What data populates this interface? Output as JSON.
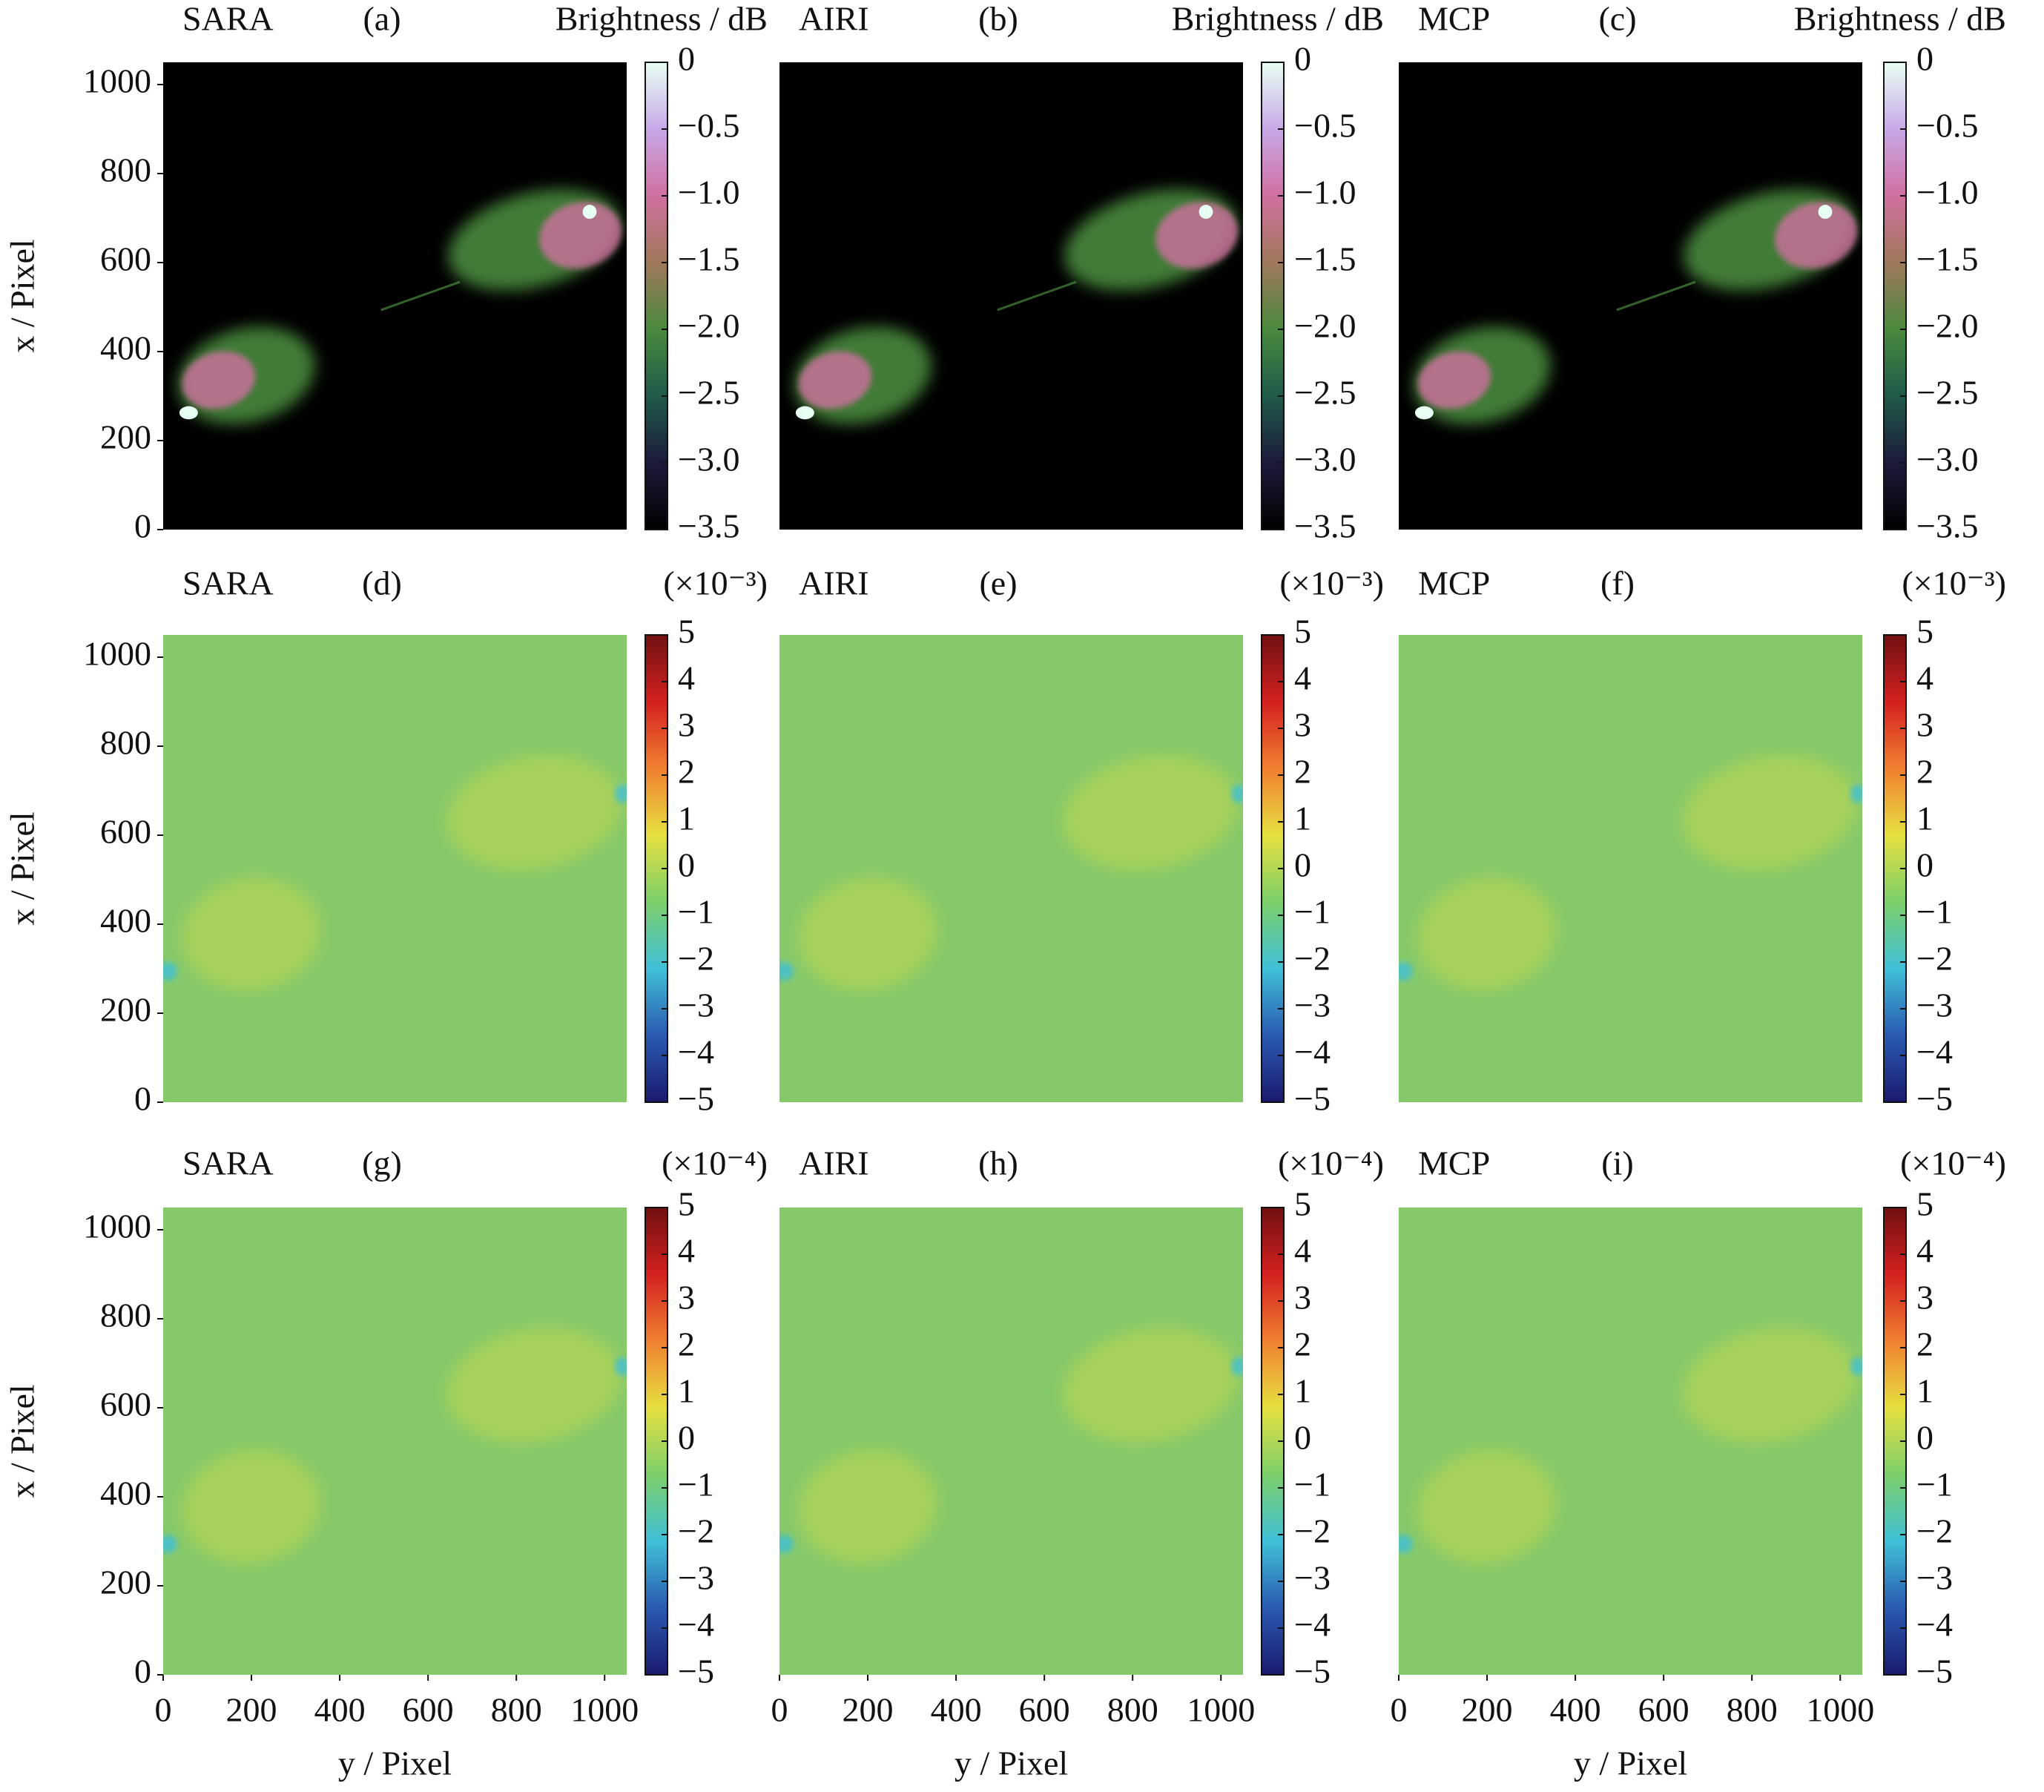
{
  "chart_data": [
    {
      "type": "image",
      "method": "SARA",
      "label": "(a)",
      "colorbar_title": "Brightness / dB",
      "background": "#000000",
      "colorbar_colors": [
        "#000000",
        "#1c1a3a",
        "#1f5a4a",
        "#4a8a3e",
        "#a0785a",
        "#d070a0",
        "#c8a8e8",
        "#e8fff4"
      ],
      "clim": [
        -3.5,
        0
      ],
      "cticks": [
        0,
        {
          "value": -0.5,
          "label": "−0.5"
        },
        {
          "value": -1.0,
          "label": "−1.0"
        },
        {
          "value": -1.5,
          "label": "−1.5"
        },
        {
          "value": -2.0,
          "label": "−2.0"
        },
        {
          "value": -2.5,
          "label": "−2.5"
        },
        {
          "value": -3.0,
          "label": "−3.0"
        },
        {
          "value": -3.5,
          "label": "−3.5"
        }
      ],
      "xlim": [
        0,
        1050
      ],
      "ylim": [
        0,
        1050
      ],
      "yticks": [
        0,
        200,
        400,
        600,
        800,
        1000
      ],
      "ylabel": "x / Pixel"
    },
    {
      "type": "image",
      "method": "AIRI",
      "label": "(b)",
      "colorbar_title": "Brightness / dB",
      "background": "#000000",
      "colorbar_colors": [
        "#000000",
        "#1c1a3a",
        "#1f5a4a",
        "#4a8a3e",
        "#a0785a",
        "#d070a0",
        "#c8a8e8",
        "#e8fff4"
      ],
      "clim": [
        -3.5,
        0
      ],
      "cticks": [
        0,
        {
          "value": -0.5,
          "label": "−0.5"
        },
        {
          "value": -1.0,
          "label": "−1.0"
        },
        {
          "value": -1.5,
          "label": "−1.5"
        },
        {
          "value": -2.0,
          "label": "−2.0"
        },
        {
          "value": -2.5,
          "label": "−2.5"
        },
        {
          "value": -3.0,
          "label": "−3.0"
        },
        {
          "value": -3.5,
          "label": "−3.5"
        }
      ],
      "xlim": [
        0,
        1050
      ],
      "ylim": [
        0,
        1050
      ]
    },
    {
      "type": "image",
      "method": "MCP",
      "label": "(c)",
      "colorbar_title": "Brightness / dB",
      "background": "#000000",
      "colorbar_colors": [
        "#000000",
        "#1c1a3a",
        "#1f5a4a",
        "#4a8a3e",
        "#a0785a",
        "#d070a0",
        "#c8a8e8",
        "#e8fff4"
      ],
      "clim": [
        -3.5,
        0
      ],
      "cticks": [
        0,
        {
          "value": -0.5,
          "label": "−0.5"
        },
        {
          "value": -1.0,
          "label": "−1.0"
        },
        {
          "value": -1.5,
          "label": "−1.5"
        },
        {
          "value": -2.0,
          "label": "−2.0"
        },
        {
          "value": -2.5,
          "label": "−2.5"
        },
        {
          "value": -3.0,
          "label": "−3.0"
        },
        {
          "value": -3.5,
          "label": "−3.5"
        }
      ],
      "xlim": [
        0,
        1050
      ],
      "ylim": [
        0,
        1050
      ]
    },
    {
      "type": "image",
      "method": "SARA",
      "label": "(d)",
      "colorbar_title": "(×10⁻³)",
      "background": "#86c96a",
      "colorbar_colors": [
        "#1a1a6e",
        "#2a5ab0",
        "#40c0d8",
        "#7ccf6a",
        "#e6e040",
        "#f08030",
        "#d42020",
        "#701010"
      ],
      "clim": [
        -5,
        5
      ],
      "cticks": [
        5,
        4,
        3,
        2,
        1,
        0,
        {
          "value": -1,
          "label": "−1"
        },
        {
          "value": -2,
          "label": "−2"
        },
        {
          "value": -3,
          "label": "−3"
        },
        {
          "value": -4,
          "label": "−4"
        },
        {
          "value": -5,
          "label": "−5"
        }
      ],
      "xlim": [
        0,
        1050
      ],
      "ylim": [
        0,
        1050
      ],
      "yticks": [
        0,
        200,
        400,
        600,
        800,
        1000
      ],
      "ylabel": "x / Pixel"
    },
    {
      "type": "image",
      "method": "AIRI",
      "label": "(e)",
      "colorbar_title": "(×10⁻³)",
      "background": "#86c96a",
      "colorbar_colors": [
        "#1a1a6e",
        "#2a5ab0",
        "#40c0d8",
        "#7ccf6a",
        "#e6e040",
        "#f08030",
        "#d42020",
        "#701010"
      ],
      "clim": [
        -5,
        5
      ],
      "cticks": [
        5,
        4,
        3,
        2,
        1,
        0,
        {
          "value": -1,
          "label": "−1"
        },
        {
          "value": -2,
          "label": "−2"
        },
        {
          "value": -3,
          "label": "−3"
        },
        {
          "value": -4,
          "label": "−4"
        },
        {
          "value": -5,
          "label": "−5"
        }
      ],
      "xlim": [
        0,
        1050
      ],
      "ylim": [
        0,
        1050
      ]
    },
    {
      "type": "image",
      "method": "MCP",
      "label": "(f)",
      "colorbar_title": "(×10⁻³)",
      "background": "#86c96a",
      "colorbar_colors": [
        "#1a1a6e",
        "#2a5ab0",
        "#40c0d8",
        "#7ccf6a",
        "#e6e040",
        "#f08030",
        "#d42020",
        "#701010"
      ],
      "clim": [
        -5,
        5
      ],
      "cticks": [
        5,
        4,
        3,
        2,
        1,
        0,
        {
          "value": -1,
          "label": "−1"
        },
        {
          "value": -2,
          "label": "−2"
        },
        {
          "value": -3,
          "label": "−3"
        },
        {
          "value": -4,
          "label": "−4"
        },
        {
          "value": -5,
          "label": "−5"
        }
      ],
      "xlim": [
        0,
        1050
      ],
      "ylim": [
        0,
        1050
      ]
    },
    {
      "type": "image",
      "method": "SARA",
      "label": "(g)",
      "colorbar_title": "(×10⁻⁴)",
      "background": "#86c96a",
      "colorbar_colors": [
        "#1a1a6e",
        "#2a5ab0",
        "#40c0d8",
        "#7ccf6a",
        "#e6e040",
        "#f08030",
        "#d42020",
        "#701010"
      ],
      "clim": [
        -5,
        5
      ],
      "cticks": [
        5,
        4,
        3,
        2,
        1,
        0,
        {
          "value": -1,
          "label": "−1"
        },
        {
          "value": -2,
          "label": "−2"
        },
        {
          "value": -3,
          "label": "−3"
        },
        {
          "value": -4,
          "label": "−4"
        },
        {
          "value": -5,
          "label": "−5"
        }
      ],
      "xlim": [
        0,
        1050
      ],
      "ylim": [
        0,
        1050
      ],
      "yticks": [
        0,
        200,
        400,
        600,
        800,
        1000
      ],
      "ylabel": "x / Pixel",
      "xticks": [
        0,
        200,
        400,
        600,
        800,
        1000
      ],
      "xlabel": "y / Pixel"
    },
    {
      "type": "image",
      "method": "AIRI",
      "label": "(h)",
      "colorbar_title": "(×10⁻⁴)",
      "background": "#86c96a",
      "colorbar_colors": [
        "#1a1a6e",
        "#2a5ab0",
        "#40c0d8",
        "#7ccf6a",
        "#e6e040",
        "#f08030",
        "#d42020",
        "#701010"
      ],
      "clim": [
        -5,
        5
      ],
      "cticks": [
        5,
        4,
        3,
        2,
        1,
        0,
        {
          "value": -1,
          "label": "−1"
        },
        {
          "value": -2,
          "label": "−2"
        },
        {
          "value": -3,
          "label": "−3"
        },
        {
          "value": -4,
          "label": "−4"
        },
        {
          "value": -5,
          "label": "−5"
        }
      ],
      "xlim": [
        0,
        1050
      ],
      "ylim": [
        0,
        1050
      ],
      "xticks": [
        0,
        200,
        400,
        600,
        800,
        1000
      ],
      "xlabel": "y / Pixel"
    },
    {
      "type": "image",
      "method": "MCP",
      "label": "(i)",
      "colorbar_title": "(×10⁻⁴)",
      "background": "#86c96a",
      "colorbar_colors": [
        "#1a1a6e",
        "#2a5ab0",
        "#40c0d8",
        "#7ccf6a",
        "#e6e040",
        "#f08030",
        "#d42020",
        "#701010"
      ],
      "clim": [
        -5,
        5
      ],
      "cticks": [
        5,
        4,
        3,
        2,
        1,
        0,
        {
          "value": -1,
          "label": "−1"
        },
        {
          "value": -2,
          "label": "−2"
        },
        {
          "value": -3,
          "label": "−3"
        },
        {
          "value": -4,
          "label": "−4"
        },
        {
          "value": -5,
          "label": "−5"
        }
      ],
      "xlim": [
        0,
        1050
      ],
      "ylim": [
        0,
        1050
      ],
      "xticks": [
        0,
        200,
        400,
        600,
        800,
        1000
      ],
      "xlabel": "y / Pixel"
    }
  ]
}
